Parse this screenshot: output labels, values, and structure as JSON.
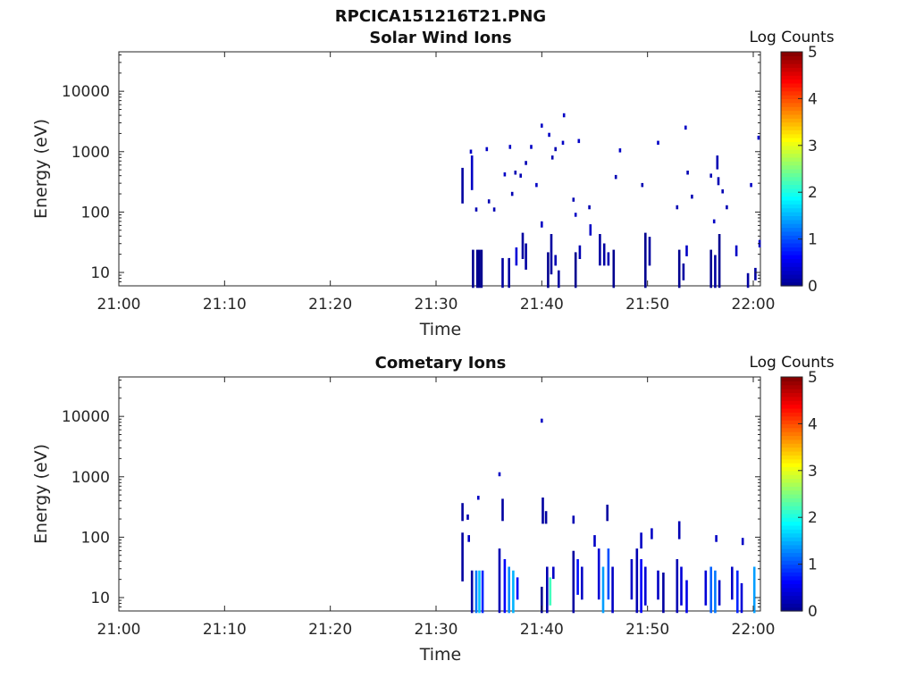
{
  "figure": {
    "filename_title": "RPCICA151216T21.PNG"
  },
  "colormap": [
    "#00008f",
    "#0000ff",
    "#0080ff",
    "#00ffff",
    "#80ff80",
    "#ffff00",
    "#ff8000",
    "#ff0000",
    "#800000"
  ],
  "chart_data": [
    {
      "type": "heatmap",
      "title": "Solar Wind Ions",
      "xlabel": "Time",
      "ylabel": "Energy (eV)",
      "x_scale": "time",
      "x_range": [
        "21:00",
        "22:00"
      ],
      "x_tick_labels": [
        "21:00",
        "21:10",
        "21:20",
        "21:30",
        "21:40",
        "21:50",
        "22:00"
      ],
      "y_scale": "log",
      "y_range": [
        6,
        45000
      ],
      "y_tick_labels": [
        "10",
        "100",
        "1000",
        "10000"
      ],
      "colorbar": {
        "label": "Log Counts",
        "range": [
          0,
          5
        ],
        "tick_labels": [
          "0",
          "1",
          "2",
          "3",
          "4",
          "5"
        ]
      },
      "grid": false,
      "cells": [
        [
          "21:32.5",
          150,
          500,
          0.1
        ],
        [
          "21:33.4",
          250,
          800,
          0.3
        ],
        [
          "21:33.3",
          1000,
          1000,
          0.3
        ],
        [
          "21:33.8",
          110,
          110,
          0.2
        ],
        [
          "21:34.8",
          1100,
          1100,
          0.3
        ],
        [
          "21:35.0",
          150,
          150,
          0.2
        ],
        [
          "21:35.5",
          110,
          110,
          0.2
        ],
        [
          "21:36.5",
          420,
          420,
          0.3
        ],
        [
          "21:37.0",
          1200,
          1200,
          0.3
        ],
        [
          "21:37.5",
          450,
          450,
          0.2
        ],
        [
          "21:37.2",
          200,
          200,
          0.2
        ],
        [
          "21:38.0",
          400,
          400,
          0.2
        ],
        [
          "21:38.5",
          650,
          650,
          0.2
        ],
        [
          "21:39.0",
          1200,
          1200,
          0.3
        ],
        [
          "21:39.5",
          280,
          280,
          0.3
        ],
        [
          "21:40.0",
          2700,
          2700,
          0.3
        ],
        [
          "21:40.7",
          1900,
          1900,
          0.3
        ],
        [
          "21:41.0",
          800,
          800,
          0.2
        ],
        [
          "21:41.3",
          1100,
          1100,
          0.2
        ],
        [
          "21:42.0",
          1400,
          1400,
          0.3
        ],
        [
          "21:42.1",
          4000,
          4000,
          0.3
        ],
        [
          "21:43.0",
          160,
          160,
          0.2
        ],
        [
          "21:43.2",
          90,
          90,
          0.3
        ],
        [
          "21:43.5",
          1500,
          1500,
          0.3
        ],
        [
          "21:44.5",
          120,
          120,
          0.2
        ],
        [
          "21:47.0",
          380,
          380,
          0.2
        ],
        [
          "21:47.4",
          1050,
          1050,
          0.3
        ],
        [
          "21:49.5",
          280,
          280,
          0.2
        ],
        [
          "21:51.0",
          1400,
          1400,
          0.3
        ],
        [
          "21:52.8",
          120,
          120,
          0.2
        ],
        [
          "21:53.6",
          2500,
          2500,
          0.3
        ],
        [
          "21:53.8",
          450,
          450,
          0.2
        ],
        [
          "21:54.2",
          180,
          180,
          0.2
        ],
        [
          "21:56.0",
          400,
          400,
          0.2
        ],
        [
          "21:56.3",
          70,
          70,
          0.3
        ],
        [
          "21:56.6",
          550,
          800,
          0.2
        ],
        [
          "21:56.7",
          300,
          350,
          0.2
        ],
        [
          "21:57.1",
          220,
          220,
          0.2
        ],
        [
          "21:57.5",
          120,
          120,
          0.2
        ],
        [
          "21:59.8",
          280,
          280,
          0.3
        ],
        [
          "22:00.5",
          1700,
          1700,
          0.3
        ],
        [
          "21:33.5",
          6,
          22,
          0.0
        ],
        [
          "21:33.9",
          6,
          22,
          0.0
        ],
        [
          "21:34.1",
          6,
          22,
          0.0
        ],
        [
          "21:34.3",
          6,
          22,
          0.0
        ],
        [
          "21:36.3",
          6,
          16,
          0.1
        ],
        [
          "21:36.9",
          6,
          16,
          0.1
        ],
        [
          "21:37.6",
          14,
          24,
          0.4
        ],
        [
          "21:38.2",
          18,
          42,
          0.1
        ],
        [
          "21:38.5",
          12,
          28,
          0.1
        ],
        [
          "21:40.0",
          60,
          65,
          0.3
        ],
        [
          "21:40.6",
          6,
          20,
          0.0
        ],
        [
          "21:40.9",
          10,
          40,
          0.1
        ],
        [
          "21:41.3",
          14,
          18,
          0.2
        ],
        [
          "21:41.6",
          6,
          10,
          0.1
        ],
        [
          "21:43.2",
          6,
          20,
          0.0
        ],
        [
          "21:43.6",
          18,
          26,
          0.2
        ],
        [
          "21:44.6",
          44,
          58,
          0.3
        ],
        [
          "21:45.5",
          14,
          40,
          0.1
        ],
        [
          "21:45.9",
          14,
          28,
          0.1
        ],
        [
          "21:46.3",
          14,
          20,
          0.2
        ],
        [
          "21:46.8",
          6,
          22,
          0.0
        ],
        [
          "21:49.8",
          6,
          42,
          0.0
        ],
        [
          "21:50.2",
          14,
          36,
          0.1
        ],
        [
          "21:53.0",
          6,
          22,
          0.0
        ],
        [
          "21:53.4",
          8,
          13,
          0.1
        ],
        [
          "21:53.7",
          20,
          26,
          0.3
        ],
        [
          "21:56.0",
          6,
          22,
          0.0
        ],
        [
          "21:56.4",
          6,
          18,
          0.1
        ],
        [
          "21:56.8",
          6,
          40,
          0.0
        ],
        [
          "21:58.4",
          20,
          26,
          0.3
        ],
        [
          "21:59.5",
          6,
          9,
          0.1
        ],
        [
          "22:00.2",
          8,
          11,
          0.1
        ],
        [
          "22:00.6",
          28,
          32,
          0.3
        ]
      ]
    },
    {
      "type": "heatmap",
      "title": "Cometary Ions",
      "xlabel": "Time",
      "ylabel": "Energy (eV)",
      "x_scale": "time",
      "x_range": [
        "21:00",
        "22:00"
      ],
      "x_tick_labels": [
        "21:00",
        "21:10",
        "21:20",
        "21:30",
        "21:40",
        "21:50",
        "22:00"
      ],
      "y_scale": "log",
      "y_range": [
        6,
        45000
      ],
      "y_tick_labels": [
        "10",
        "100",
        "1000",
        "10000"
      ],
      "colorbar": {
        "label": "Log Counts",
        "range": [
          0,
          5
        ],
        "tick_labels": [
          "0",
          "1",
          "2",
          "3",
          "4",
          "5"
        ]
      },
      "grid": false,
      "cells": [
        [
          "21:32.5",
          20,
          110,
          0.1
        ],
        [
          "21:32.5",
          200,
          340,
          0.1
        ],
        [
          "21:33.0",
          210,
          220,
          0.2
        ],
        [
          "21:33.1",
          90,
          100,
          0.3
        ],
        [
          "21:34.0",
          450,
          450,
          0.3
        ],
        [
          "21:36.0",
          1100,
          1100,
          0.3
        ],
        [
          "21:36.3",
          200,
          400,
          0.1
        ],
        [
          "21:40.0",
          8500,
          8500,
          0.3
        ],
        [
          "21:40.1",
          180,
          420,
          0.1
        ],
        [
          "21:40.4",
          180,
          250,
          0.1
        ],
        [
          "21:43.0",
          180,
          210,
          0.2
        ],
        [
          "21:45.0",
          75,
          100,
          0.3
        ],
        [
          "21:46.2",
          200,
          320,
          0.1
        ],
        [
          "21:49.4",
          70,
          110,
          0.3
        ],
        [
          "21:50.4",
          100,
          130,
          0.3
        ],
        [
          "21:53.0",
          100,
          170,
          0.2
        ],
        [
          "21:56.5",
          90,
          100,
          0.3
        ],
        [
          "21:59.0",
          80,
          90,
          0.3
        ],
        [
          "21:33.4",
          6,
          26,
          0.1
        ],
        [
          "21:33.8",
          6,
          26,
          1.2
        ],
        [
          "21:34.1",
          6,
          26,
          1.6
        ],
        [
          "21:34.4",
          6,
          26,
          0.8
        ],
        [
          "21:36.0",
          6,
          60,
          0.2
        ],
        [
          "21:36.5",
          6,
          40,
          0.6
        ],
        [
          "21:36.9",
          6,
          30,
          1.3
        ],
        [
          "21:37.3",
          6,
          26,
          1.5
        ],
        [
          "21:37.7",
          10,
          20,
          0.6
        ],
        [
          "21:40.0",
          6,
          14,
          0.0
        ],
        [
          "21:40.5",
          6,
          30,
          0.2
        ],
        [
          "21:40.8",
          8,
          20,
          2.2
        ],
        [
          "21:41.1",
          22,
          30,
          0.3
        ],
        [
          "21:43.0",
          6,
          55,
          0.1
        ],
        [
          "21:43.4",
          12,
          40,
          0.7
        ],
        [
          "21:43.8",
          10,
          30,
          0.3
        ],
        [
          "21:45.4",
          10,
          60,
          0.4
        ],
        [
          "21:45.8",
          6,
          30,
          1.4
        ],
        [
          "21:46.3",
          10,
          60,
          1.0
        ],
        [
          "21:46.7",
          6,
          30,
          0.3
        ],
        [
          "21:48.5",
          10,
          40,
          0.3
        ],
        [
          "21:49.0",
          6,
          60,
          0.2
        ],
        [
          "21:49.4",
          6,
          40,
          0.6
        ],
        [
          "21:49.8",
          8,
          30,
          0.4
        ],
        [
          "21:51.0",
          10,
          26,
          0.3
        ],
        [
          "21:51.5",
          6,
          24,
          0.1
        ],
        [
          "21:52.8",
          6,
          40,
          0.2
        ],
        [
          "21:53.2",
          8,
          30,
          0.4
        ],
        [
          "21:53.7",
          6,
          18,
          0.5
        ],
        [
          "21:55.5",
          8,
          26,
          0.4
        ],
        [
          "21:56.0",
          6,
          30,
          1.1
        ],
        [
          "21:56.4",
          6,
          26,
          1.2
        ],
        [
          "21:56.8",
          8,
          18,
          0.3
        ],
        [
          "21:58.0",
          10,
          30,
          0.3
        ],
        [
          "21:58.5",
          6,
          26,
          0.8
        ],
        [
          "21:58.9",
          6,
          16,
          0.4
        ],
        [
          "22:00.1",
          6,
          30,
          1.4
        ]
      ]
    }
  ]
}
